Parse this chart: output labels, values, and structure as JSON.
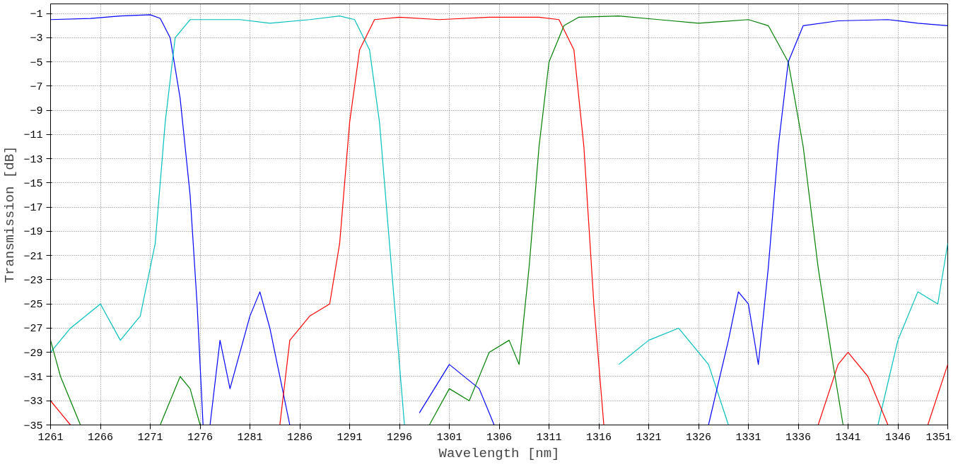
{
  "chart_data": {
    "type": "line",
    "xlabel": "Wavelength [nm]",
    "ylabel": "Transmission [dB]",
    "xlim": [
      1261,
      1351
    ],
    "ylim": [
      -35,
      -0.2
    ],
    "xticks": [
      1261,
      1266,
      1271,
      1276,
      1281,
      1286,
      1291,
      1296,
      1301,
      1306,
      1311,
      1316,
      1321,
      1326,
      1331,
      1336,
      1341,
      1346,
      1351
    ],
    "yticks": [
      -35,
      -33,
      -31,
      -29,
      -27,
      -25,
      -23,
      -21,
      -19,
      -17,
      -15,
      -13,
      -11,
      -9,
      -7,
      -5,
      -3,
      -1
    ],
    "grid": true,
    "line_style": "solid",
    "series": [
      {
        "color": "#0000ff",
        "x": [
          1261,
          1265,
          1268,
          1271,
          1272,
          1273,
          1274,
          1275,
          1275.7,
          1276.3,
          1276.5,
          1277,
          1278,
          1279,
          1281,
          1282,
          1283,
          1284,
          1285,
          1295,
          1298,
          1301,
          1304,
          1305.5
        ],
        "values": [
          -1.5,
          -1.4,
          -1.2,
          -1.1,
          -1.4,
          -3,
          -8,
          -16,
          -25,
          -35,
          null,
          -35,
          -28,
          -32,
          -26,
          -24,
          -27,
          -31,
          -35,
          null,
          -34,
          -30,
          -32,
          -35
        ]
      },
      {
        "color": "#00bfbf",
        "x": [
          1261,
          1263,
          1266,
          1268,
          1270,
          1271.5,
          1272.5,
          1273.5,
          1275,
          1280,
          1283,
          1287,
          1290,
          1291.5,
          1293,
          1294,
          1295,
          1296,
          1296.5,
          1310,
          1318,
          1321,
          1324,
          1327,
          1329,
          1340,
          1344,
          1346,
          1348,
          1350,
          1351
        ],
        "values": [
          -29,
          -27,
          -25,
          -28,
          -26,
          -20,
          -10,
          -3,
          -1.5,
          -1.5,
          -1.8,
          -1.5,
          -1.2,
          -1.5,
          -4,
          -10,
          -20,
          -30,
          -35,
          null,
          -30,
          -28,
          -27,
          -30,
          -35,
          null,
          -35,
          -28,
          -24,
          -25,
          -20
        ]
      },
      {
        "color": "#ff0000",
        "x": [
          1261,
          1262,
          1263,
          1270,
          1284,
          1285,
          1287,
          1289,
          1290,
          1291,
          1292,
          1293.5,
          1296,
          1300,
          1305,
          1310,
          1312,
          1313.5,
          1314.5,
          1315.5,
          1316.5,
          1330,
          1338,
          1340,
          1341,
          1343,
          1345,
          1347,
          1349,
          1351
        ],
        "values": [
          -33,
          -34,
          -35,
          null,
          -35,
          -28,
          -26,
          -25,
          -20,
          -10,
          -4,
          -1.5,
          -1.3,
          -1.5,
          -1.3,
          -1.3,
          -1.5,
          -4,
          -12,
          -25,
          -35,
          null,
          -35,
          -30,
          -29,
          -31,
          -35,
          null,
          -35,
          -30
        ]
      },
      {
        "color": "#008000",
        "x": [
          1261,
          1262,
          1264,
          1268,
          1272,
          1274,
          1275,
          1276,
          1290,
          1299,
          1301,
          1303,
          1305,
          1307,
          1308,
          1309,
          1310,
          1311,
          1312.5,
          1314,
          1318,
          1322,
          1326,
          1331,
          1333,
          1335,
          1336.5,
          1338,
          1339.5,
          1340.5
        ],
        "values": [
          -28,
          -31,
          -35,
          null,
          -35,
          -31,
          -32,
          -35,
          null,
          -35,
          -32,
          -33,
          -29,
          -28,
          -30,
          -22,
          -12,
          -5,
          -2,
          -1.3,
          -1.2,
          -1.5,
          -1.8,
          -1.5,
          -2,
          -5,
          -12,
          -22,
          -30,
          -35
        ]
      },
      {
        "color": "#0000ff",
        "x": [
          1327,
          1329,
          1330,
          1331,
          1332,
          1333,
          1334,
          1335,
          1336.5,
          1340,
          1345,
          1348,
          1351
        ],
        "values": [
          -35,
          -28,
          -24,
          -25,
          -30,
          -22,
          -12,
          -5,
          -2,
          -1.6,
          -1.5,
          -1.8,
          -2
        ]
      }
    ]
  }
}
